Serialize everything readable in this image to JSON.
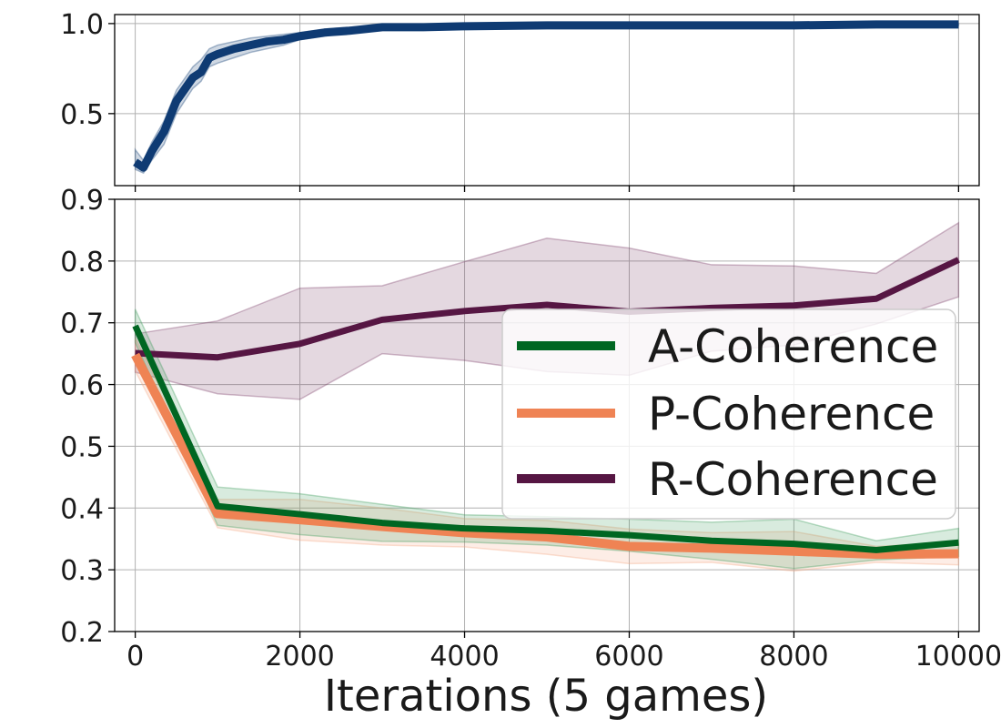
{
  "chart_data": {
    "type": "line",
    "xlabel": "Iterations (5 games)",
    "xlim": [
      -250,
      10250
    ],
    "xticks": [
      0,
      2000,
      4000,
      6000,
      8000,
      10000
    ],
    "xtick_labels": [
      "0",
      "2000",
      "4000",
      "6000",
      "8000",
      "10000"
    ],
    "legend_position": "center-right",
    "grid": true,
    "panels": [
      {
        "id": "top",
        "ylim": [
          0.1,
          1.05
        ],
        "yticks": [
          0.5,
          1.0
        ],
        "ytick_labels": [
          "0.5",
          "1.0"
        ],
        "show_xtick_labels": false,
        "series": [
          {
            "key": "top-series",
            "color": "#0f3b73",
            "fill_color": "#0f3b73",
            "points": [
              {
                "x": 0,
                "y": 0.23,
                "lo": 0.19,
                "hi": 0.3
              },
              {
                "x": 100,
                "y": 0.2,
                "lo": 0.17,
                "hi": 0.24
              },
              {
                "x": 200,
                "y": 0.29,
                "lo": 0.24,
                "hi": 0.34
              },
              {
                "x": 350,
                "y": 0.4,
                "lo": 0.33,
                "hi": 0.46
              },
              {
                "x": 500,
                "y": 0.57,
                "lo": 0.5,
                "hi": 0.63
              },
              {
                "x": 700,
                "y": 0.7,
                "lo": 0.64,
                "hi": 0.76
              },
              {
                "x": 800,
                "y": 0.73,
                "lo": 0.68,
                "hi": 0.8
              },
              {
                "x": 900,
                "y": 0.81,
                "lo": 0.76,
                "hi": 0.86
              },
              {
                "x": 1000,
                "y": 0.83,
                "lo": 0.78,
                "hi": 0.88
              },
              {
                "x": 1200,
                "y": 0.86,
                "lo": 0.81,
                "hi": 0.9
              },
              {
                "x": 1400,
                "y": 0.88,
                "lo": 0.84,
                "hi": 0.92
              },
              {
                "x": 1600,
                "y": 0.9,
                "lo": 0.86,
                "hi": 0.93
              },
              {
                "x": 1800,
                "y": 0.91,
                "lo": 0.88,
                "hi": 0.94
              },
              {
                "x": 2000,
                "y": 0.93,
                "lo": 0.91,
                "hi": 0.95
              },
              {
                "x": 2300,
                "y": 0.95,
                "lo": 0.93,
                "hi": 0.97
              },
              {
                "x": 2600,
                "y": 0.96,
                "lo": 0.95,
                "hi": 0.98
              },
              {
                "x": 3000,
                "y": 0.98,
                "lo": 0.97,
                "hi": 0.99
              },
              {
                "x": 3500,
                "y": 0.98,
                "lo": 0.97,
                "hi": 0.99
              },
              {
                "x": 4000,
                "y": 0.985,
                "lo": 0.975,
                "hi": 0.995
              },
              {
                "x": 5000,
                "y": 0.99,
                "lo": 0.98,
                "hi": 0.995
              },
              {
                "x": 6000,
                "y": 0.99,
                "lo": 0.98,
                "hi": 0.995
              },
              {
                "x": 7000,
                "y": 0.99,
                "lo": 0.985,
                "hi": 0.995
              },
              {
                "x": 8000,
                "y": 0.99,
                "lo": 0.985,
                "hi": 0.995
              },
              {
                "x": 9000,
                "y": 0.995,
                "lo": 0.99,
                "hi": 1.0
              },
              {
                "x": 10000,
                "y": 0.995,
                "lo": 0.99,
                "hi": 1.0
              }
            ]
          }
        ]
      },
      {
        "id": "bottom",
        "ylim": [
          0.2,
          0.9
        ],
        "yticks": [
          0.2,
          0.3,
          0.4,
          0.5,
          0.6,
          0.7,
          0.8,
          0.9
        ],
        "ytick_labels": [
          "0.2",
          "0.3",
          "0.4",
          "0.5",
          "0.6",
          "0.7",
          "0.8",
          "0.9"
        ],
        "show_xtick_labels": true,
        "series": [
          {
            "key": "r-coherence",
            "name": "R-Coherence",
            "color": "#561643",
            "fill_color": "#7a3b66",
            "points": [
              {
                "x": 0,
                "y": 0.651,
                "lo": 0.62,
                "hi": 0.682
              },
              {
                "x": 1000,
                "y": 0.644,
                "lo": 0.585,
                "hi": 0.703
              },
              {
                "x": 2000,
                "y": 0.666,
                "lo": 0.576,
                "hi": 0.756
              },
              {
                "x": 3000,
                "y": 0.705,
                "lo": 0.65,
                "hi": 0.76
              },
              {
                "x": 4000,
                "y": 0.719,
                "lo": 0.639,
                "hi": 0.799
              },
              {
                "x": 5000,
                "y": 0.729,
                "lo": 0.621,
                "hi": 0.837
              },
              {
                "x": 6000,
                "y": 0.718,
                "lo": 0.615,
                "hi": 0.821
              },
              {
                "x": 7000,
                "y": 0.724,
                "lo": 0.654,
                "hi": 0.794
              },
              {
                "x": 8000,
                "y": 0.728,
                "lo": 0.664,
                "hi": 0.792
              },
              {
                "x": 9000,
                "y": 0.739,
                "lo": 0.698,
                "hi": 0.78
              },
              {
                "x": 10000,
                "y": 0.802,
                "lo": 0.742,
                "hi": 0.862
              }
            ]
          },
          {
            "key": "p-coherence",
            "name": "P-Coherence",
            "color": "#ef8354",
            "fill_color": "#f4a582",
            "points": [
              {
                "x": 0,
                "y": 0.648,
                "lo": 0.622,
                "hi": 0.675
              },
              {
                "x": 1000,
                "y": 0.391,
                "lo": 0.368,
                "hi": 0.414
              },
              {
                "x": 2000,
                "y": 0.381,
                "lo": 0.348,
                "hi": 0.414
              },
              {
                "x": 3000,
                "y": 0.37,
                "lo": 0.34,
                "hi": 0.4
              },
              {
                "x": 4000,
                "y": 0.36,
                "lo": 0.337,
                "hi": 0.383
              },
              {
                "x": 5000,
                "y": 0.353,
                "lo": 0.325,
                "hi": 0.38
              },
              {
                "x": 6000,
                "y": 0.338,
                "lo": 0.31,
                "hi": 0.366
              },
              {
                "x": 7000,
                "y": 0.335,
                "lo": 0.312,
                "hi": 0.36
              },
              {
                "x": 8000,
                "y": 0.33,
                "lo": 0.298,
                "hi": 0.362
              },
              {
                "x": 9000,
                "y": 0.325,
                "lo": 0.312,
                "hi": 0.338
              },
              {
                "x": 10000,
                "y": 0.326,
                "lo": 0.308,
                "hi": 0.344
              }
            ]
          },
          {
            "key": "a-coherence",
            "name": "A-Coherence",
            "color": "#006622",
            "fill_color": "#3a9a5a",
            "points": [
              {
                "x": 0,
                "y": 0.695,
                "lo": 0.668,
                "hi": 0.722
              },
              {
                "x": 1000,
                "y": 0.403,
                "lo": 0.372,
                "hi": 0.434
              },
              {
                "x": 2000,
                "y": 0.39,
                "lo": 0.357,
                "hi": 0.423
              },
              {
                "x": 3000,
                "y": 0.376,
                "lo": 0.346,
                "hi": 0.406
              },
              {
                "x": 4000,
                "y": 0.367,
                "lo": 0.345,
                "hi": 0.389
              },
              {
                "x": 5000,
                "y": 0.363,
                "lo": 0.34,
                "hi": 0.386
              },
              {
                "x": 6000,
                "y": 0.356,
                "lo": 0.33,
                "hi": 0.382
              },
              {
                "x": 7000,
                "y": 0.347,
                "lo": 0.317,
                "hi": 0.377
              },
              {
                "x": 8000,
                "y": 0.342,
                "lo": 0.302,
                "hi": 0.382
              },
              {
                "x": 9000,
                "y": 0.332,
                "lo": 0.316,
                "hi": 0.347
              },
              {
                "x": 10000,
                "y": 0.344,
                "lo": 0.322,
                "hi": 0.367
              }
            ]
          }
        ]
      }
    ],
    "legend": [
      {
        "name": "A-Coherence",
        "color": "#006622"
      },
      {
        "name": "P-Coherence",
        "color": "#ef8354"
      },
      {
        "name": "R-Coherence",
        "color": "#561643"
      }
    ]
  }
}
